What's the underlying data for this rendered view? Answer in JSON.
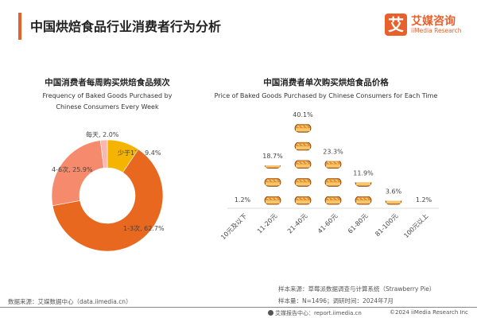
{
  "header": {
    "title": "中国烘焙食品行业消费者行为分析",
    "logo_mark": "艾",
    "logo_cn": "艾媒咨询",
    "logo_en": "iiMedia Research",
    "accent": "#e8602c"
  },
  "chart_data": [
    {
      "type": "pie",
      "donut": true,
      "title": "中国消费者每周购买烘焙食品频次",
      "subtitle": "Frequency of Baked Goods Purchased by Chinese Consumers Every Week",
      "slices": [
        {
          "label": "少于1次",
          "value": 9.4,
          "display": "少于1次, 9.4%",
          "color": "#f5b400"
        },
        {
          "label": "1-3次",
          "value": 62.7,
          "display": "1-3次, 62.7%",
          "color": "#e8681f"
        },
        {
          "label": "4-6次",
          "value": 25.9,
          "display": "4-6次, 25.9%",
          "color": "#f58b6c"
        },
        {
          "label": "每天",
          "value": 2.0,
          "display": "每天, 2.0%",
          "color": "#f8b8b0"
        }
      ]
    },
    {
      "type": "bar",
      "style": "pictograph",
      "icon": "bread-icon",
      "title": "中国消费者单次购买烘焙食品价格",
      "subtitle": "Price of Baked Goods Purchased by Chinese Consumers for Each Time",
      "categories": [
        "10元及以下",
        "11-20元",
        "21-40元",
        "41-60元",
        "61-80元",
        "81-100元",
        "100元以上"
      ],
      "values": [
        1.2,
        18.7,
        40.1,
        23.3,
        11.9,
        3.6,
        1.2
      ],
      "labels": [
        "1.2%",
        "18.7%",
        "40.1%",
        "23.3%",
        "11.9%",
        "3.6%",
        "1.2%"
      ]
    }
  ],
  "footer": {
    "source": "数据来源：艾媒数据中心（data.iimedia.cn）",
    "sample_source": "样本来源：草莓派数据调查与计算系统（Strawberry Pie）",
    "sample_size": "样本量：N=1496；调研时间：2024年7月",
    "report_center": "艾媒报告中心：report.iimedia.cn",
    "copyright": "©2024 iiMedia Research Inc"
  }
}
